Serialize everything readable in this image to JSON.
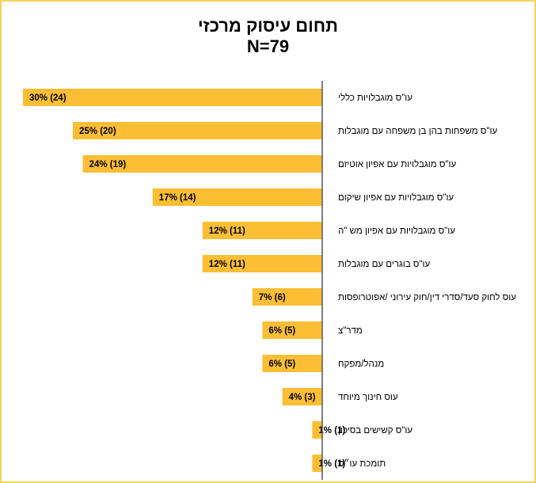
{
  "chart_data": {
    "type": "bar",
    "orientation": "horizontal",
    "title": "תחום עיסוק מרכזי",
    "subtitle": "N=79",
    "categories": [
      "עו\"ס מוגבלויות כללי",
      "עו\"ס משפחות בהן בן משפחה עם מוגבלות",
      "עו\"ס מוגבלויות עם אפיון אוטיזם",
      "עו\"ס מוגבלויות עם אפיון שיקום",
      "עו\"ס מוגבלויות עם אפיון מש \"ה",
      "עו\"ס בוגרים עם מוגבלות",
      "עוס לחוק סעד/סדרי דין/חוק עירוני /אפוטרופסות",
      "מדר\"צ",
      "מנהל/מפקח",
      "עוס חינוך מיוחד",
      "עו\"ס קשישים בסיכון",
      "תומכת עו״ס"
    ],
    "values": [
      30,
      25,
      24,
      17,
      12,
      12,
      7,
      6,
      6,
      4,
      1,
      1
    ],
    "counts": [
      24,
      20,
      19,
      14,
      11,
      11,
      6,
      5,
      5,
      3,
      1,
      1
    ],
    "data_labels": [
      "30% (24)",
      "25% (20)",
      "24% (19)",
      "17% (14)",
      "12% (11)",
      "12% (11)",
      "7% (6)",
      "6% (5)",
      "6% (5)",
      "4% (3)",
      "1% (1)",
      "1% (1)"
    ],
    "xlim": [
      0,
      30
    ],
    "bar_color": "#fbbe34",
    "axis_color": "#555555",
    "frame_color": "#f7d35c",
    "grid": false,
    "legend": "none"
  }
}
